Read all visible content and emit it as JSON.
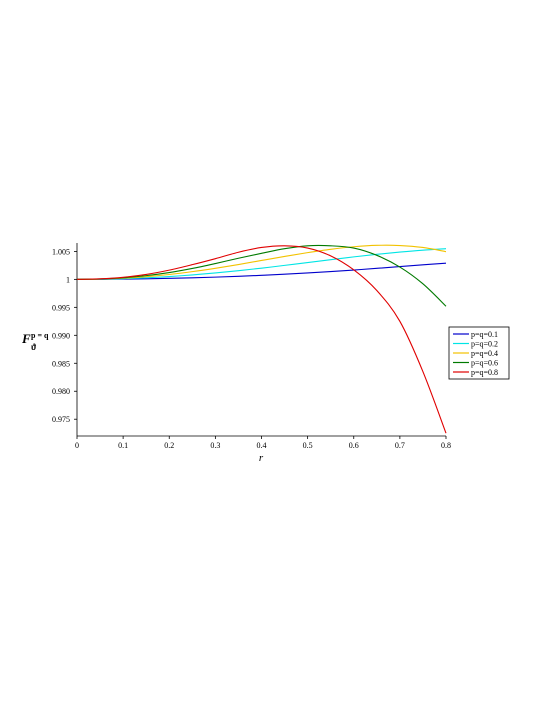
{
  "chart_data": {
    "type": "line",
    "xlabel": "r",
    "ylabel": {
      "main": "F",
      "sup": "p = q",
      "sub": "ϑ"
    },
    "xlim": [
      0,
      0.8
    ],
    "ylim": [
      0.972,
      1.0065
    ],
    "xticks": [
      "0",
      "0.1",
      "0.2",
      "0.3",
      "0.4",
      "0.5",
      "0.6",
      "0.7",
      "0.8"
    ],
    "yticks": [
      {
        "value": 1.005,
        "label": "1.005"
      },
      {
        "value": 1.0,
        "label": "1"
      },
      {
        "value": 0.995,
        "label": "0.995"
      },
      {
        "value": 0.99,
        "label": "0.990"
      },
      {
        "value": 0.985,
        "label": "0.985"
      },
      {
        "value": 0.98,
        "label": "0.980"
      },
      {
        "value": 0.975,
        "label": "0.975"
      }
    ],
    "x": [
      0,
      0.05,
      0.1,
      0.15,
      0.2,
      0.25,
      0.3,
      0.35,
      0.4,
      0.45,
      0.5,
      0.55,
      0.6,
      0.65,
      0.7,
      0.75,
      0.8
    ],
    "series": [
      {
        "name": "p=q=0.1",
        "color": "#0000cc",
        "values": [
          1.0,
          1.00001,
          1.00005,
          1.0001,
          1.00018,
          1.00028,
          1.0004,
          1.00055,
          1.00072,
          1.00092,
          1.00115,
          1.0014,
          1.00167,
          1.00197,
          1.00228,
          1.0026,
          1.0029
        ]
      },
      {
        "name": "p=q=0.2",
        "color": "#00e5e5",
        "values": [
          1.0,
          1.00002,
          1.00012,
          1.00028,
          1.0005,
          1.0008,
          1.00115,
          1.00155,
          1.002,
          1.0025,
          1.003,
          1.00352,
          1.00402,
          1.00448,
          1.00488,
          1.00522,
          1.00548
        ]
      },
      {
        "name": "p=q=0.4",
        "color": "#f2c200",
        "values": [
          1.0,
          1.00005,
          1.0002,
          1.00048,
          1.00087,
          1.00138,
          1.00198,
          1.00265,
          1.00338,
          1.0041,
          1.00478,
          1.00538,
          1.00583,
          1.00608,
          1.00605,
          1.0057,
          1.00495
        ]
      },
      {
        "name": "p=q=0.6",
        "color": "#007a00",
        "values": [
          1.0,
          1.00007,
          1.00028,
          1.00067,
          1.00122,
          1.00195,
          1.00283,
          1.00377,
          1.00465,
          1.00548,
          1.006,
          1.006,
          1.0056,
          1.0043,
          1.0022,
          0.9992,
          0.9952
        ]
      },
      {
        "name": "p=q=0.8",
        "color": "#e00000",
        "values": [
          1.0,
          1.00009,
          1.00037,
          1.00088,
          1.00165,
          1.00263,
          1.0037,
          1.00485,
          1.0057,
          1.006,
          1.0056,
          1.0042,
          1.0017,
          0.998,
          0.9925,
          0.9835,
          0.9725
        ]
      }
    ],
    "legend_placement": "right",
    "grid": false
  }
}
